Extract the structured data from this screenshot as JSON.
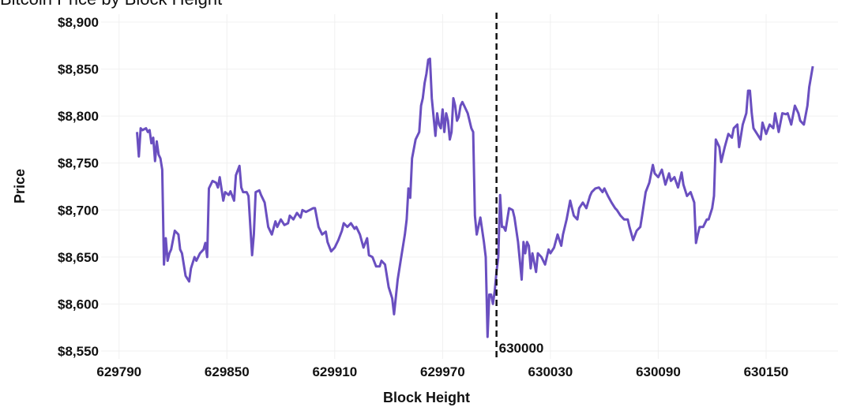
{
  "chart_data": {
    "type": "line",
    "title": "Bitcoin Price by Block Height",
    "x_label": "Block Height",
    "y_label": "Price",
    "color": "#6a4fc0",
    "grid": true,
    "xlim": [
      629780,
      630190
    ],
    "ylim": [
      8550,
      8900
    ],
    "xticks": [
      629790,
      629850,
      629910,
      629970,
      630030,
      630090,
      630150
    ],
    "yticks": [
      {
        "value": 8550,
        "label": "$8,550"
      },
      {
        "value": 8600,
        "label": "$8,600"
      },
      {
        "value": 8650,
        "label": "$8,650"
      },
      {
        "value": 8700,
        "label": "$8,700"
      },
      {
        "value": 8750,
        "label": "$8,750"
      },
      {
        "value": 8800,
        "label": "$8,800"
      },
      {
        "value": 8850,
        "label": "$8,850"
      },
      {
        "value": 8900,
        "label": "$8,900"
      }
    ],
    "annotation": {
      "x": 630000,
      "label": "630000"
    },
    "x": [
      629800,
      629801,
      629802,
      629803,
      629805,
      629806,
      629807,
      629808,
      629809,
      629810,
      629811,
      629812,
      629813,
      629814,
      629815,
      629816,
      629817,
      629818,
      629819,
      629821,
      629823,
      629824,
      629825,
      629827,
      629829,
      629830,
      629832,
      629833,
      629835,
      629837,
      629838,
      629839,
      629840,
      629842,
      629844,
      629845,
      629846,
      629848,
      629849,
      629851,
      629852,
      629854,
      629855,
      629857,
      629858,
      629859,
      629861,
      629862,
      629864,
      629865,
      629866,
      629868,
      629869,
      629871,
      629873,
      629875,
      629877,
      629878,
      629880,
      629882,
      629884,
      629885,
      629887,
      629889,
      629891,
      629892,
      629894,
      629896,
      629898,
      629899,
      629901,
      629903,
      629905,
      629906,
      629908,
      629910,
      629912,
      629914,
      629915,
      629917,
      629919,
      629921,
      629922,
      629924,
      629926,
      629928,
      629929,
      629931,
      629933,
      629935,
      629936,
      629938,
      629940,
      629942,
      629943,
      629945,
      629947,
      629949,
      629950,
      629951,
      629952,
      629953,
      629955,
      629957,
      629958,
      629959,
      629960,
      629961,
      629962,
      629963,
      629964,
      629965,
      629966,
      629967,
      629968,
      629969,
      629970,
      629971,
      629972,
      629973,
      629974,
      629975,
      629976,
      629977,
      629978,
      629979,
      629980,
      629981,
      629982,
      629984,
      629986,
      629987,
      629988,
      629989,
      629991,
      629993,
      629994,
      629995,
      629996,
      629997,
      629998,
      629999,
      630000,
      630001,
      630002,
      630003,
      630004,
      630005,
      630007,
      630009,
      630010,
      630012,
      630014,
      630015,
      630016,
      630017,
      630018,
      630019,
      630020,
      630022,
      630023,
      630025,
      630027,
      630029,
      630030,
      630032,
      630034,
      630036,
      630037,
      630039,
      630041,
      630043,
      630045,
      630046,
      630048,
      630050,
      630052,
      630053,
      630055,
      630057,
      630059,
      630060,
      630062,
      630064,
      630066,
      630067,
      630069,
      630071,
      630073,
      630074,
      630076,
      630078,
      630080,
      630081,
      630083,
      630085,
      630087,
      630088,
      630090,
      630092,
      630094,
      630096,
      630097,
      630099,
      630101,
      630103,
      630104,
      630106,
      630108,
      630110,
      630111,
      630112,
      630113,
      630115,
      630117,
      630118,
      630120,
      630121,
      630122,
      630124,
      630125,
      630127,
      630129,
      630131,
      630132,
      630134,
      630135,
      630137,
      630139,
      630140,
      630141,
      630142,
      630143,
      630145,
      630147,
      630148,
      630150,
      630152,
      630154,
      630155,
      630157,
      630159,
      630161,
      630162,
      630164,
      630166,
      630168,
      630169,
      630171,
      630173,
      630174,
      630176
    ],
    "values": [
      8783,
      8757,
      8787,
      8785,
      8787,
      8783,
      8785,
      8771,
      8777,
      8752,
      8773,
      8759,
      8755,
      8743,
      8642,
      8670,
      8646,
      8654,
      8658,
      8678,
      8674,
      8658,
      8654,
      8630,
      8624,
      8638,
      8650,
      8646,
      8654,
      8658,
      8665,
      8650,
      8723,
      8731,
      8729,
      8724,
      8735,
      8710,
      8719,
      8716,
      8720,
      8710,
      8737,
      8747,
      8724,
      8719,
      8719,
      8715,
      8652,
      8674,
      8719,
      8721,
      8716,
      8708,
      8682,
      8674,
      8688,
      8682,
      8690,
      8684,
      8686,
      8694,
      8690,
      8697,
      8692,
      8700,
      8698,
      8700,
      8702,
      8702,
      8682,
      8674,
      8677,
      8666,
      8656,
      8660,
      8668,
      8678,
      8686,
      8682,
      8686,
      8680,
      8682,
      8674,
      8660,
      8670,
      8652,
      8650,
      8640,
      8640,
      8646,
      8642,
      8618,
      8606,
      8589,
      8626,
      8650,
      8674,
      8690,
      8723,
      8713,
      8755,
      8775,
      8783,
      8811,
      8819,
      8835,
      8845,
      8860,
      8861,
      8819,
      8799,
      8779,
      8803,
      8791,
      8787,
      8807,
      8783,
      8803,
      8795,
      8775,
      8783,
      8819,
      8811,
      8795,
      8799,
      8811,
      8815,
      8811,
      8803,
      8787,
      8783,
      8694,
      8674,
      8692,
      8666,
      8650,
      8565,
      8610,
      8610,
      8600,
      8614,
      8634,
      8650,
      8716,
      8682,
      8682,
      8678,
      8702,
      8700,
      8692,
      8666,
      8626,
      8666,
      8654,
      8666,
      8662,
      8638,
      8654,
      8634,
      8654,
      8650,
      8642,
      8658,
      8654,
      8660,
      8674,
      8662,
      8674,
      8690,
      8710,
      8694,
      8690,
      8702,
      8708,
      8702,
      8715,
      8719,
      8723,
      8724,
      8719,
      8723,
      8715,
      8708,
      8702,
      8700,
      8694,
      8690,
      8690,
      8682,
      8668,
      8678,
      8682,
      8694,
      8719,
      8729,
      8748,
      8739,
      8735,
      8743,
      8727,
      8739,
      8731,
      8735,
      8724,
      8740,
      8727,
      8715,
      8719,
      8708,
      8665,
      8674,
      8682,
      8682,
      8690,
      8690,
      8702,
      8715,
      8775,
      8767,
      8751,
      8767,
      8781,
      8777,
      8787,
      8791,
      8767,
      8791,
      8803,
      8827,
      8827,
      8803,
      8787,
      8781,
      8775,
      8793,
      8781,
      8791,
      8787,
      8803,
      8783,
      8803,
      8802,
      8803,
      8791,
      8811,
      8803,
      8795,
      8791,
      8811,
      8831,
      8853
    ]
  }
}
